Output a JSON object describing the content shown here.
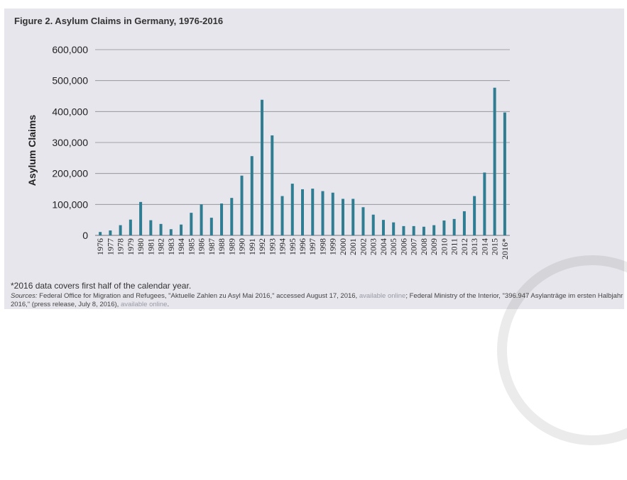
{
  "figure": {
    "title": "Figure 2. Asylum Claims in Germany, 1976-2016",
    "footnote": "*2016 data covers first half of the calendar year.",
    "sources": {
      "label": "Sources:",
      "text1": " Federal Office for Migration and Refugees, \"Aktuelle Zahlen zu Asyl Mai 2016,\" accessed August 17, 2016, ",
      "link1": "available online",
      "text2": "; Federal Ministry of the Interior, \"396.947 Asylanträge im ersten Halbjahr 2016,\" (press release, July 8, 2016), ",
      "link2": "available online",
      "text3": "."
    }
  },
  "colors": {
    "bar": "#2f7d92",
    "panel": "#e6e6ec",
    "gridline": "#8a8a94",
    "link": "#9a9aa6"
  },
  "chart_data": {
    "type": "bar",
    "ylabel": "Asylum Claims",
    "xlabel": "",
    "ylim": [
      0,
      600000
    ],
    "yticks": [
      0,
      100000,
      200000,
      300000,
      400000,
      500000,
      600000
    ],
    "ytick_labels": [
      "0",
      "100,000",
      "200,000",
      "300,000",
      "400,000",
      "500,000",
      "600,000"
    ],
    "grid": true,
    "categories": [
      "1976",
      "1977",
      "1978",
      "1979",
      "1980",
      "1981",
      "1982",
      "1983",
      "1984",
      "1985",
      "1986",
      "1987",
      "1988",
      "1989",
      "1990",
      "1991",
      "1992",
      "1993",
      "1994",
      "1995",
      "1996",
      "1997",
      "1998",
      "1999",
      "2000",
      "2001",
      "2002",
      "2003",
      "2004",
      "2005",
      "2006",
      "2007",
      "2008",
      "2009",
      "2010",
      "2011",
      "2012",
      "2013",
      "2014",
      "2015",
      "2016*"
    ],
    "values": [
      11000,
      16000,
      33000,
      51000,
      108000,
      49000,
      37000,
      20000,
      35000,
      73000,
      100000,
      57000,
      103000,
      121000,
      193000,
      256000,
      438000,
      323000,
      127000,
      167000,
      149000,
      151000,
      143000,
      138000,
      118000,
      118000,
      91000,
      67000,
      50000,
      42000,
      30000,
      30000,
      28000,
      33000,
      48000,
      53000,
      78000,
      127000,
      203000,
      477000,
      397000
    ]
  }
}
